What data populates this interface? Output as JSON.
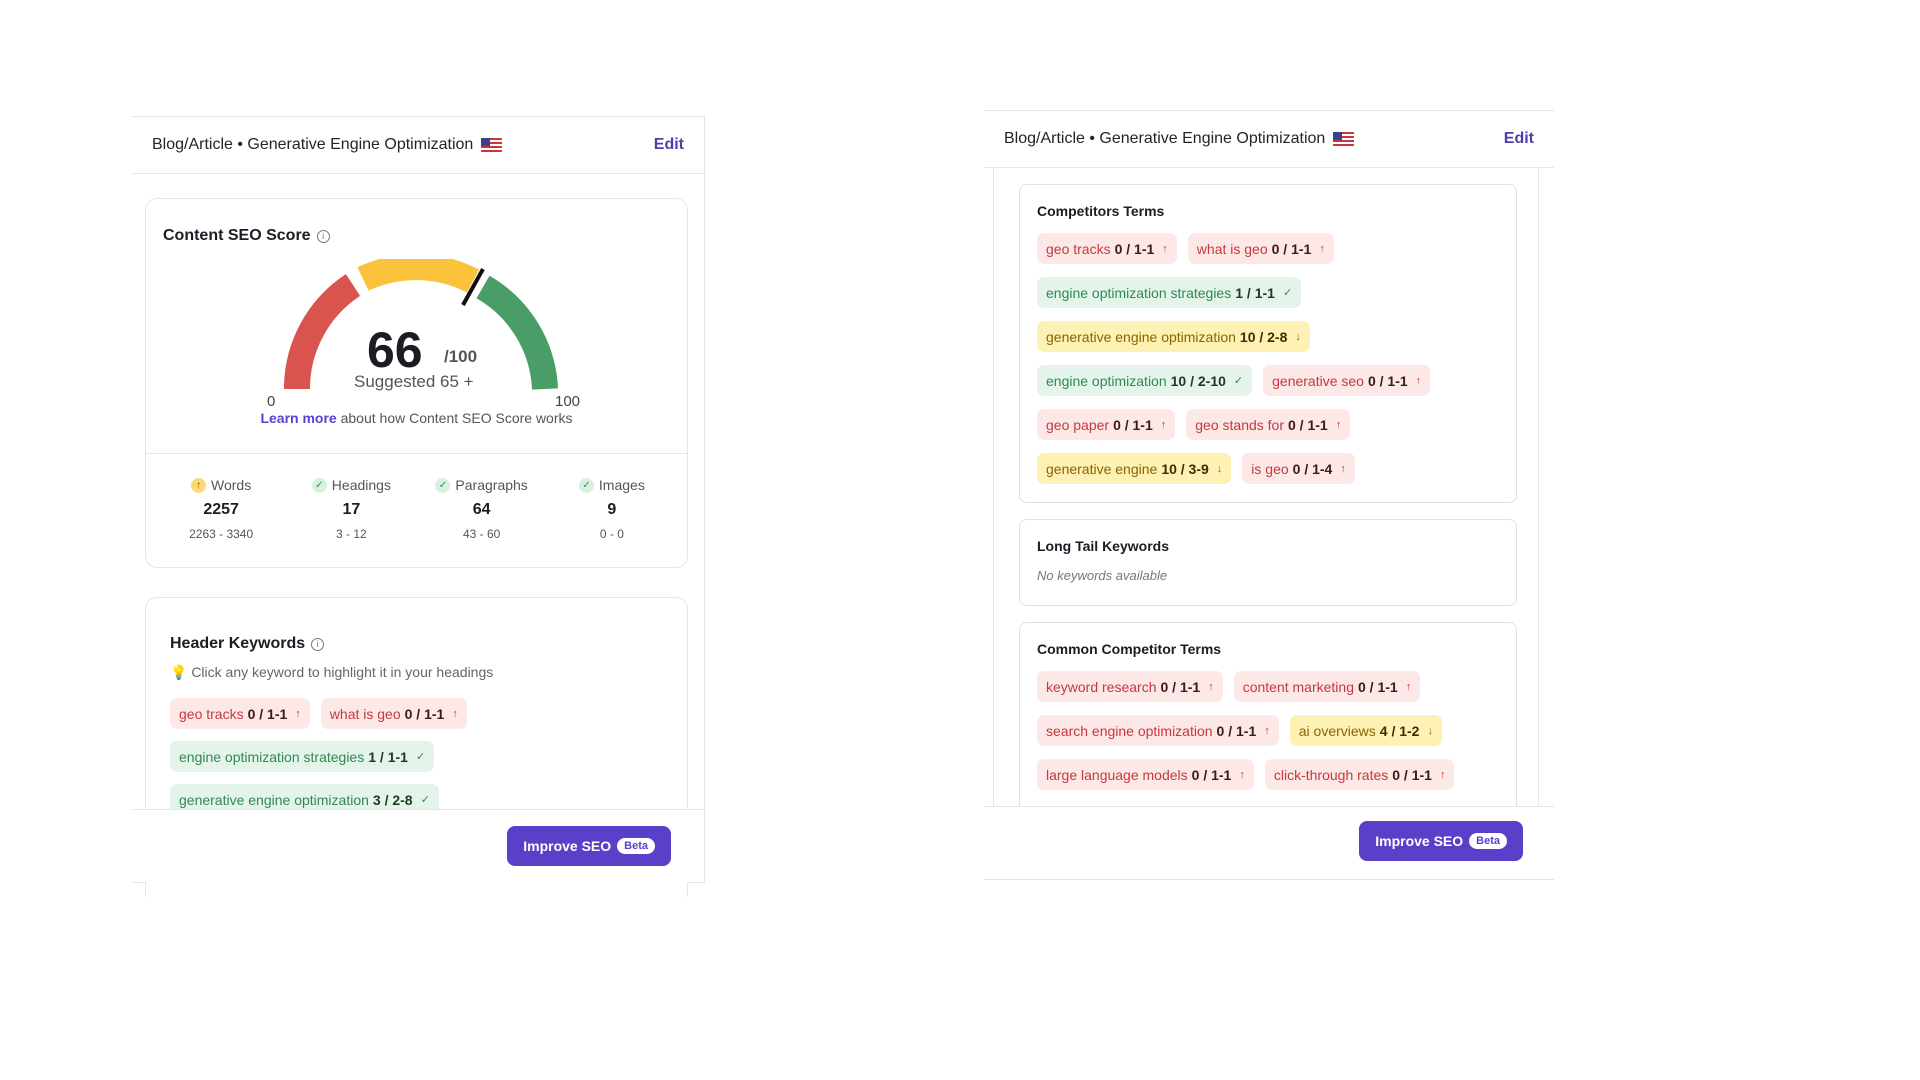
{
  "panel_left": {
    "header": {
      "title": "Blog/Article • Generative Engine Optimization",
      "edit_label": "Edit"
    },
    "score": {
      "title": "Content SEO Score",
      "value": "66",
      "out_of": "/100",
      "suggested": "Suggested  65 +",
      "min_label": "0",
      "max_label": "100",
      "learn_more_link": "Learn more",
      "learn_more_text": " about how Content SEO Score works",
      "stats": [
        {
          "label": "Words",
          "value": "2257",
          "range": "2263 - 3340",
          "status": "up"
        },
        {
          "label": "Headings",
          "value": "17",
          "range": "3 - 12",
          "status": "ok"
        },
        {
          "label": "Paragraphs",
          "value": "64",
          "range": "43 - 60",
          "status": "ok"
        },
        {
          "label": "Images",
          "value": "9",
          "range": "0 - 0",
          "status": "ok"
        }
      ]
    },
    "header_keywords": {
      "title": "Header Keywords",
      "hint": "💡 Click any keyword to highlight it in your headings",
      "rows": [
        [
          {
            "term": "geo tracks",
            "count": "0 / 1-1",
            "color": "red",
            "icon": "↑"
          },
          {
            "term": "what is geo",
            "count": "0 / 1-1",
            "color": "red",
            "icon": "↑"
          }
        ],
        [
          {
            "term": "engine optimization strategies",
            "count": "1 / 1-1",
            "color": "green",
            "icon": "✓"
          }
        ],
        [
          {
            "term": "generative engine optimization",
            "count": "3 / 2-8",
            "color": "green",
            "icon": "✓"
          }
        ]
      ]
    },
    "footer": {
      "button_label": "Improve SEO",
      "badge": "Beta"
    }
  },
  "panel_right": {
    "header": {
      "title": "Blog/Article • Generative Engine Optimization",
      "edit_label": "Edit"
    },
    "competitors_terms": {
      "title": "Competitors Terms",
      "rows": [
        [
          {
            "term": "geo tracks",
            "count": "0 / 1-1",
            "color": "red",
            "icon": "↑"
          },
          {
            "term": "what is geo",
            "count": "0 / 1-1",
            "color": "red",
            "icon": "↑"
          }
        ],
        [
          {
            "term": "engine optimization strategies",
            "count": "1 / 1-1",
            "color": "green",
            "icon": "✓"
          }
        ],
        [
          {
            "term": "generative engine optimization",
            "count": "10 / 2-8",
            "color": "yellow",
            "icon": "↓"
          }
        ],
        [
          {
            "term": "engine optimization",
            "count": "10 / 2-10",
            "color": "green",
            "icon": "✓"
          },
          {
            "term": "generative seo",
            "count": "0 / 1-1",
            "color": "red",
            "icon": "↑"
          }
        ],
        [
          {
            "term": "geo paper",
            "count": "0 / 1-1",
            "color": "red",
            "icon": "↑"
          },
          {
            "term": "geo stands for",
            "count": "0 / 1-1",
            "color": "red",
            "icon": "↑"
          }
        ],
        [
          {
            "term": "generative engine",
            "count": "10 / 3-9",
            "color": "yellow",
            "icon": "↓"
          },
          {
            "term": "is geo",
            "count": "0 / 1-4",
            "color": "red",
            "icon": "↑"
          }
        ]
      ]
    },
    "long_tail": {
      "title": "Long Tail Keywords",
      "empty": "No keywords available"
    },
    "common_terms": {
      "title": "Common Competitor Terms",
      "rows": [
        [
          {
            "term": "keyword research",
            "count": "0 / 1-1",
            "color": "red",
            "icon": "↑"
          },
          {
            "term": "content marketing",
            "count": "0 / 1-1",
            "color": "red",
            "icon": "↑"
          }
        ],
        [
          {
            "term": "search engine optimization",
            "count": "0 / 1-1",
            "color": "red",
            "icon": "↑"
          },
          {
            "term": "ai overviews",
            "count": "4 / 1-2",
            "color": "yellow",
            "icon": "↓"
          }
        ],
        [
          {
            "term": "large language models",
            "count": "0 / 1-1",
            "color": "red",
            "icon": "↑"
          },
          {
            "term": "click-through rates",
            "count": "0 / 1-1",
            "color": "red",
            "icon": "↑"
          }
        ]
      ]
    },
    "footer": {
      "button_label": "Improve SEO",
      "badge": "Beta"
    }
  },
  "colors": {
    "red": "#d9534f",
    "yellow": "#fbc23c",
    "green": "#4a9d66",
    "accent": "#5a3fc8"
  }
}
